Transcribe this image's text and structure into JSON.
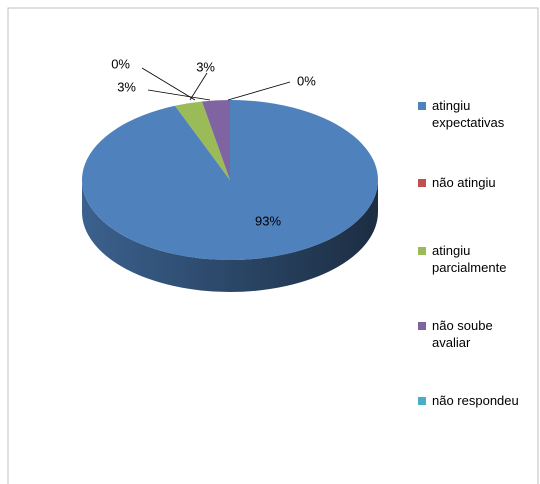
{
  "chart_data": {
    "type": "pie",
    "categories": [
      "atingiu expectativas",
      "não atingiu",
      "atingiu parcialmente",
      "não soube avaliar",
      "não respondeu"
    ],
    "values": [
      93,
      0,
      3,
      3,
      0
    ],
    "value_labels": [
      "93%",
      "0%",
      "3%",
      "3%",
      "0%"
    ],
    "colors": [
      "#4f81bd",
      "#c0504d",
      "#9bbb59",
      "#8064a2",
      "#4bacc6"
    ],
    "legend": "right"
  }
}
